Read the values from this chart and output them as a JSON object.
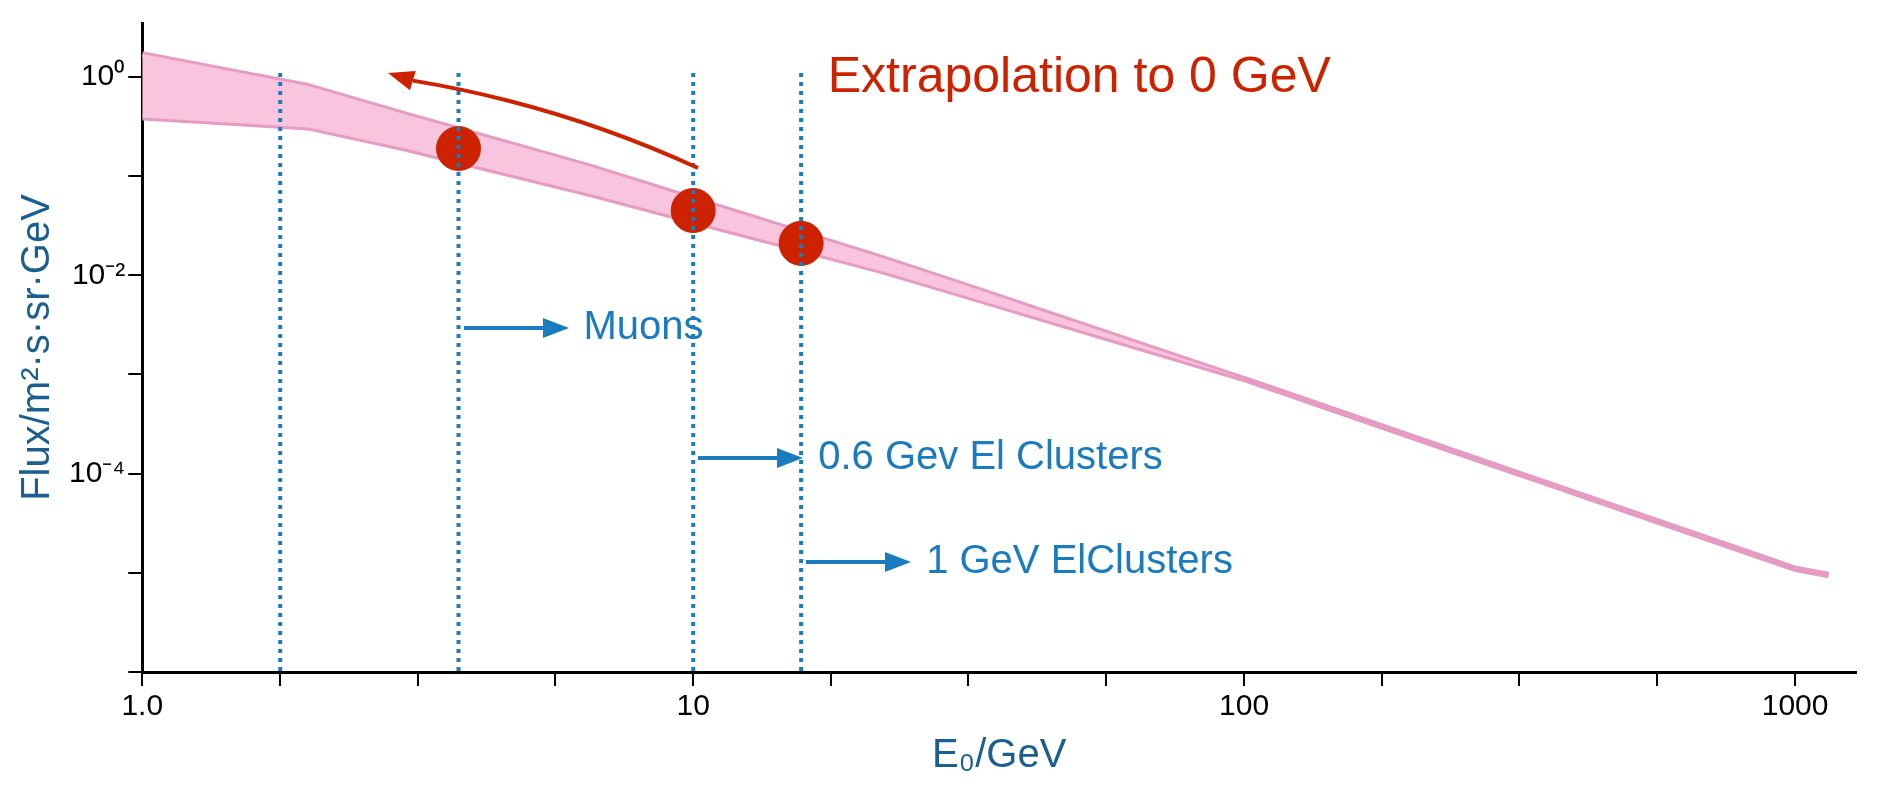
{
  "chart_data": {
    "type": "line",
    "xlabel": "E₀/GeV",
    "ylabel": "Flux/m²·s·sr·GeV",
    "log": "xy",
    "grid": false,
    "legend": false,
    "xlim": [
      1,
      1290
    ],
    "ylim": [
      1e-06,
      3.5
    ],
    "xticks": [
      {
        "value": 1,
        "label": "1.0"
      },
      {
        "value": 1.78,
        "label": null
      },
      {
        "value": 3.16,
        "label": null
      },
      {
        "value": 5.62,
        "label": null
      },
      10,
      {
        "value": 17.8,
        "label": null
      },
      {
        "value": 31.6,
        "label": null
      },
      {
        "value": 56.2,
        "label": null
      },
      100,
      {
        "value": 178,
        "label": null
      },
      {
        "value": 316,
        "label": null
      },
      {
        "value": 562,
        "label": null
      },
      1000
    ],
    "yticks": [
      {
        "value": 1e-06,
        "label": null
      },
      {
        "value": 1e-05,
        "label": null
      },
      {
        "value": 0.0001,
        "label": "10⁻⁴"
      },
      {
        "value": 0.001,
        "label": null
      },
      {
        "value": 0.01,
        "label": "10⁻²"
      },
      {
        "value": 0.1,
        "label": null
      },
      {
        "value": 1,
        "label": "10⁰"
      }
    ],
    "series": [
      {
        "color": "#e69bc3",
        "x": [
          1,
          2,
          3,
          6.5,
          22,
          30,
          100,
          300,
          1000,
          1150
        ],
        "values": [
          1.7,
          0.81,
          0.42,
          0.125,
          0.015,
          0.0085,
          0.0009,
          0.00011,
          1.1e-05,
          9.5e-06
        ],
        "lower": [
          0.39,
          0.31,
          0.19,
          0.066,
          0.011,
          0.0066,
          0.0009,
          0.00011,
          1.1e-05,
          9.5e-06
        ],
        "upper": [
          1.7,
          0.81,
          0.42,
          0.125,
          0.015,
          0.0085,
          0.0009,
          0.00011,
          1.1e-05,
          9.5e-06
        ]
      },
      {
        "color": "#e69bc3",
        "x": [
          1,
          2,
          3,
          6.5,
          22,
          30,
          100,
          300,
          1000,
          1150
        ],
        "values": [
          0.39,
          0.31,
          0.19,
          0.066,
          0.011,
          0.0066,
          0.0009,
          0.00011,
          1.1e-05,
          9.5e-06
        ]
      },
      {
        "type": "scatter",
        "color": "#cc2200",
        "marker": "circle",
        "x": [
          3.75,
          10,
          15.7
        ],
        "values": [
          0.19,
          0.045,
          0.021
        ]
      }
    ],
    "ref_lines": [
      {
        "axis": "x",
        "value": 1.78,
        "color": "#1a7bbf",
        "line_style": "dotted"
      },
      {
        "axis": "x",
        "value": 3.75,
        "label": "Muons",
        "color": "#1a7bbf",
        "line_style": "dotted"
      },
      {
        "axis": "x",
        "value": 10,
        "label": "0.6 Gev El Clusters",
        "color": "#1a7bbf",
        "line_style": "dotted"
      },
      {
        "axis": "x",
        "value": 15.7,
        "label": "1 GeV ElClusters",
        "color": "#1a7bbf",
        "line_style": "dotted"
      }
    ],
    "annotations": [
      "Extrapolation to 0 GeV"
    ]
  }
}
